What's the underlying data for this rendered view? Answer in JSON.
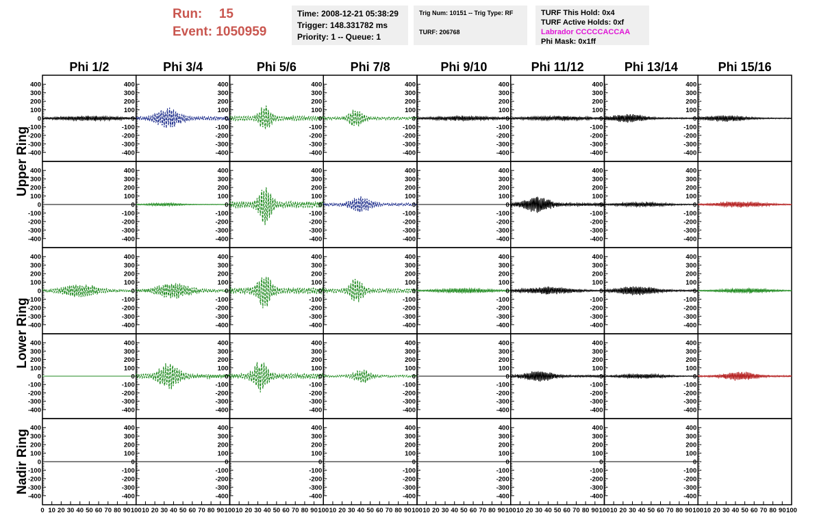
{
  "header": {
    "run_label": "Run:",
    "run_value": "15",
    "event_label": "Event:",
    "event_value": "1050959"
  },
  "info": {
    "time": "Time: 2008-12-21 05:38:29",
    "trigger": "Trigger: 148.331782 ms",
    "priority": "Priority: 1 -- Queue: 1",
    "trig_num": "Trig Num: 10151 -- Trig Type: RF",
    "turf": "TURF: 206768",
    "turf_hold": "TURF This Hold: 0x4",
    "turf_active": "TURF Active Holds: 0xf",
    "labrador": "Labrador CCCCCACCAA",
    "phi_mask": "Phi Mask: 0x1ff"
  },
  "colors": {
    "title_red": "#c9564f",
    "labrador_magenta": "#e016d6",
    "black": "#000000",
    "blue": "#1a2a8a",
    "green": "#1f8a1f",
    "red": "#b52020",
    "panel_bg": "#efefef"
  },
  "chart_data": {
    "type": "line",
    "columns": [
      "Phi 1/2",
      "Phi 3/4",
      "Phi 5/6",
      "Phi 7/8",
      "Phi 9/10",
      "Phi 11/12",
      "Phi 13/14",
      "Phi 15/16"
    ],
    "rows": [
      "Upper Ring",
      "Upper Ring",
      "Lower Ring",
      "Lower Ring",
      "Nadir Ring"
    ],
    "row_labels": [
      "Upper Ring",
      "Lower Ring",
      "Nadir Ring"
    ],
    "xlim": [
      0,
      100
    ],
    "ylim": [
      -450,
      450
    ],
    "yticks": [
      "400",
      "300",
      "200",
      "100",
      "0",
      "-100",
      "-200",
      "-300",
      "-400"
    ],
    "xticks": [
      "0",
      "10",
      "20",
      "30",
      "40",
      "50",
      "60",
      "70",
      "80",
      "90",
      "100"
    ],
    "panels": [
      [
        {
          "color": "black",
          "style": "solid",
          "amp": 30,
          "center": 50,
          "width": 80,
          "period": 1.6
        },
        {
          "color": "blue",
          "style": "dashed",
          "amp": 140,
          "center": 35,
          "width": 28,
          "period": 2.2
        },
        {
          "color": "green",
          "style": "dashed",
          "amp": 180,
          "center": 38,
          "width": 14,
          "period": 2.4
        },
        {
          "color": "green",
          "style": "dashed",
          "amp": 120,
          "center": 35,
          "width": 16,
          "period": 2.4
        },
        {
          "color": "black",
          "style": "solid",
          "amp": 30,
          "center": 50,
          "width": 80,
          "period": 1.6
        },
        {
          "color": "black",
          "style": "solid",
          "amp": 30,
          "center": 50,
          "width": 80,
          "period": 1.6
        },
        {
          "color": "black",
          "style": "solid",
          "amp": 55,
          "center": 25,
          "width": 40,
          "period": 1.6
        },
        {
          "color": "black",
          "style": "solid",
          "amp": 40,
          "center": 30,
          "width": 50,
          "period": 1.6
        }
      ],
      [
        {
          "color": "black",
          "style": "flat",
          "amp": 0,
          "center": 50,
          "width": 10,
          "period": 2
        },
        {
          "color": "green",
          "style": "solid",
          "amp": 20,
          "center": 30,
          "width": 40,
          "period": 1.8
        },
        {
          "color": "green",
          "style": "dashed",
          "amp": 250,
          "center": 38,
          "width": 16,
          "period": 2.4
        },
        {
          "color": "blue",
          "style": "dashed",
          "amp": 110,
          "center": 40,
          "width": 24,
          "period": 2.2
        },
        {
          "color": "black",
          "style": "flat",
          "amp": 0,
          "center": 50,
          "width": 10,
          "period": 2
        },
        {
          "color": "black",
          "style": "solid",
          "amp": 110,
          "center": 28,
          "width": 30,
          "period": 1.6
        },
        {
          "color": "black",
          "style": "solid",
          "amp": 30,
          "center": 40,
          "width": 60,
          "period": 1.6
        },
        {
          "color": "red",
          "style": "solid",
          "amp": 40,
          "center": 45,
          "width": 55,
          "period": 1.6
        }
      ],
      [
        {
          "color": "green",
          "style": "dashed",
          "amp": 90,
          "center": 40,
          "width": 40,
          "period": 2.2
        },
        {
          "color": "green",
          "style": "dashed",
          "amp": 100,
          "center": 40,
          "width": 40,
          "period": 2.2
        },
        {
          "color": "green",
          "style": "dashed",
          "amp": 240,
          "center": 37,
          "width": 16,
          "period": 2.4
        },
        {
          "color": "green",
          "style": "dashed",
          "amp": 160,
          "center": 35,
          "width": 16,
          "period": 2.4
        },
        {
          "color": "green",
          "style": "solid",
          "amp": 30,
          "center": 50,
          "width": 70,
          "period": 1.8
        },
        {
          "color": "black",
          "style": "solid",
          "amp": 50,
          "center": 40,
          "width": 55,
          "period": 1.6
        },
        {
          "color": "black",
          "style": "solid",
          "amp": 60,
          "center": 35,
          "width": 45,
          "period": 1.6
        },
        {
          "color": "green",
          "style": "solid",
          "amp": 30,
          "center": 50,
          "width": 60,
          "period": 1.6
        }
      ],
      [
        {
          "color": "green",
          "style": "flat",
          "amp": 0,
          "center": 50,
          "width": 10,
          "period": 2
        },
        {
          "color": "green",
          "style": "dashed",
          "amp": 180,
          "center": 35,
          "width": 24,
          "period": 2.4
        },
        {
          "color": "green",
          "style": "dashed",
          "amp": 200,
          "center": 33,
          "width": 18,
          "period": 2.4
        },
        {
          "color": "green",
          "style": "dashed",
          "amp": 90,
          "center": 42,
          "width": 20,
          "period": 2.4
        },
        {
          "color": "black",
          "style": "flat",
          "amp": 0,
          "center": 50,
          "width": 10,
          "period": 2
        },
        {
          "color": "black",
          "style": "solid",
          "amp": 80,
          "center": 30,
          "width": 30,
          "period": 1.6
        },
        {
          "color": "black",
          "style": "solid",
          "amp": 30,
          "center": 40,
          "width": 55,
          "period": 1.6
        },
        {
          "color": "red",
          "style": "solid",
          "amp": 60,
          "center": 45,
          "width": 35,
          "period": 1.6
        }
      ],
      [
        {
          "color": "black",
          "style": "flat",
          "amp": 0,
          "center": 50,
          "width": 10,
          "period": 2
        },
        {
          "color": "black",
          "style": "flat",
          "amp": 0,
          "center": 50,
          "width": 10,
          "period": 2
        },
        {
          "color": "black",
          "style": "flat",
          "amp": 0,
          "center": 50,
          "width": 10,
          "period": 2
        },
        {
          "color": "black",
          "style": "flat",
          "amp": 0,
          "center": 50,
          "width": 10,
          "period": 2
        },
        {
          "color": "black",
          "style": "flat",
          "amp": 0,
          "center": 50,
          "width": 10,
          "period": 2
        },
        {
          "color": "black",
          "style": "flat",
          "amp": 0,
          "center": 50,
          "width": 10,
          "period": 2
        },
        {
          "color": "black",
          "style": "flat",
          "amp": 0,
          "center": 50,
          "width": 10,
          "period": 2
        },
        {
          "color": "black",
          "style": "none",
          "amp": 0,
          "center": 50,
          "width": 10,
          "period": 2
        }
      ]
    ]
  }
}
